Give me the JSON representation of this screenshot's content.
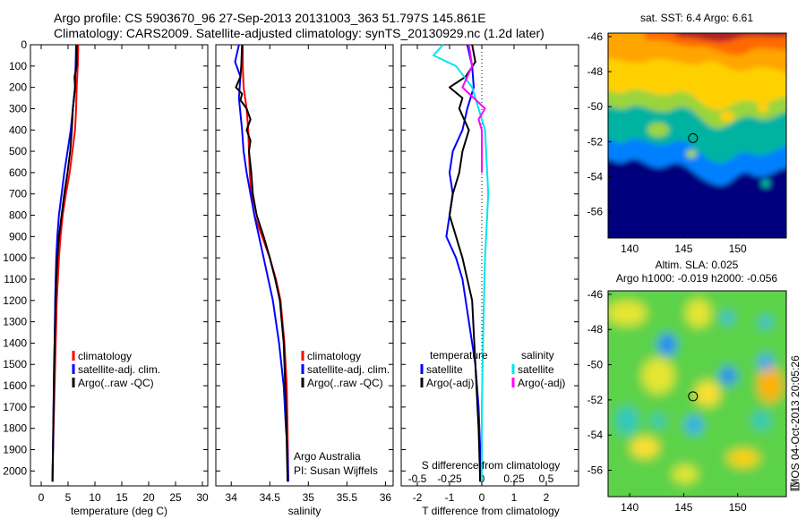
{
  "header": {
    "line1": "Argo profile: CS 5903670_96 27-Sep-2013 20131003_363 51.797S 145.861E",
    "line2": "Climatology: CARS2009. Satellite-adjusted climatology: synTS_20130929.nc (1.2d later)"
  },
  "side_text": "IMOS 04-Oct-2013 20:05:26",
  "colors": {
    "climatology": "#ff0000",
    "satellite": "#0000ff",
    "argo": "#000000",
    "cyan": "#00e5ee",
    "magenta": "#ff00ff"
  },
  "chart_data": [
    {
      "type": "line",
      "xlabel": "temperature (deg C)",
      "ylabel": "",
      "xlim": [
        -2,
        31
      ],
      "ylim": [
        2070,
        0
      ],
      "yreversed": true,
      "xticks": [
        0,
        5,
        10,
        15,
        20,
        25,
        30
      ],
      "yticks": [
        0,
        100,
        200,
        300,
        400,
        500,
        600,
        700,
        800,
        900,
        1000,
        1100,
        1200,
        1300,
        1400,
        1500,
        1600,
        1700,
        1800,
        1900,
        2000
      ],
      "legend": [
        "climatology",
        "satellite-adj. clim.",
        "Argo(..raw -QC)"
      ],
      "series": [
        {
          "name": "climatology",
          "color": "#ff0000",
          "x": [
            6.9,
            6.8,
            6.6,
            6.5,
            6.3,
            5.8,
            5.3,
            4.6,
            4.0,
            3.6,
            3.3,
            3.1,
            2.9,
            2.7,
            2.6,
            2.5,
            2.4,
            2.3,
            2.2,
            2.1
          ],
          "y": [
            0,
            100,
            200,
            300,
            400,
            500,
            600,
            700,
            800,
            900,
            1000,
            1100,
            1200,
            1400,
            1500,
            1600,
            1700,
            1800,
            1900,
            2050
          ]
        },
        {
          "name": "satellite-adj. clim.",
          "color": "#0000ff",
          "x": [
            6.5,
            6.4,
            6.3,
            5.9,
            5.5,
            4.9,
            4.3,
            3.8,
            3.3,
            3.0,
            2.8,
            2.6,
            2.5,
            2.3,
            2.1
          ],
          "y": [
            0,
            100,
            200,
            300,
            400,
            500,
            600,
            700,
            800,
            900,
            1000,
            1200,
            1400,
            1700,
            2050
          ]
        },
        {
          "name": "Argo(..raw -QC)",
          "color": "#000000",
          "x": [
            6.6,
            6.6,
            6.2,
            6.3,
            5.9,
            5.7,
            5.4,
            4.9,
            4.3,
            3.8,
            3.3,
            3.0,
            2.8,
            2.6,
            2.4,
            2.3,
            2.2,
            2.1
          ],
          "y": [
            0,
            100,
            150,
            200,
            300,
            400,
            500,
            600,
            700,
            800,
            900,
            1000,
            1100,
            1300,
            1500,
            1700,
            1900,
            2050
          ]
        }
      ]
    },
    {
      "type": "line",
      "xlabel": "salinity",
      "ylabel": "",
      "xlim": [
        33.8,
        36.1
      ],
      "ylim": [
        2070,
        0
      ],
      "yreversed": true,
      "xticks": [
        34,
        34.5,
        35,
        35.5,
        36
      ],
      "xticklabels": [
        "34",
        "34.5",
        "35",
        "35.5",
        "36"
      ],
      "legend": [
        "climatology",
        "satellite-adj. clim.",
        "Argo(..raw -QC)"
      ],
      "annotations": [
        "Argo Australia",
        "PI: Susan Wijffels"
      ],
      "series": [
        {
          "name": "climatology",
          "color": "#ff0000",
          "x": [
            34.15,
            34.15,
            34.16,
            34.2,
            34.22,
            34.23,
            34.24,
            34.26,
            34.3,
            34.4,
            34.5,
            34.58,
            34.64,
            34.69,
            34.72,
            34.73,
            34.74
          ],
          "y": [
            0,
            100,
            200,
            300,
            400,
            500,
            600,
            700,
            800,
            900,
            1000,
            1100,
            1200,
            1400,
            1600,
            1800,
            2050
          ]
        },
        {
          "name": "satellite-adj. clim.",
          "color": "#0000ff",
          "x": [
            34.1,
            34.05,
            34.12,
            34.1,
            34.14,
            34.16,
            34.2,
            34.3,
            34.42,
            34.54,
            34.62,
            34.68,
            34.71,
            34.73,
            34.74
          ],
          "y": [
            0,
            80,
            150,
            250,
            400,
            500,
            600,
            800,
            1000,
            1200,
            1400,
            1600,
            1800,
            1900,
            2050
          ]
        },
        {
          "name": "Argo(..raw -QC)",
          "color": "#000000",
          "x": [
            34.14,
            34.13,
            34.12,
            34.06,
            34.14,
            34.12,
            34.2,
            34.25,
            34.2,
            34.25,
            34.23,
            34.26,
            34.28,
            34.33,
            34.42,
            34.5,
            34.57,
            34.63,
            34.68,
            34.71,
            34.73
          ],
          "y": [
            0,
            100,
            150,
            200,
            230,
            260,
            300,
            350,
            400,
            450,
            500,
            600,
            700,
            800,
            900,
            1000,
            1100,
            1200,
            1400,
            1700,
            2050
          ]
        }
      ]
    },
    {
      "type": "line",
      "xlabel": "T difference from climatology",
      "xlabel2": "S difference from climatology",
      "xlim": [
        -2.5,
        3.0
      ],
      "ylim": [
        2070,
        0
      ],
      "yreversed": true,
      "xticks": [
        -2,
        -1,
        0,
        1,
        2
      ],
      "xticks2": [
        -0.5,
        -0.25,
        0,
        0.25,
        0.5
      ],
      "xticklabels2": [
        "-0.5",
        "-0.25",
        "0",
        "0.25",
        "0.5"
      ],
      "legend_titles": [
        "temperature",
        "salinity"
      ],
      "legend": [
        "satellite",
        "Argo(-adj)",
        "satellite",
        "Argo(-adj)"
      ],
      "series": [
        {
          "name": "temperature satellite",
          "color": "#0000ff",
          "x": [
            -0.45,
            -0.3,
            -0.25,
            -0.45,
            -0.6,
            -0.9,
            -1.0,
            -0.9,
            -1.0,
            -1.1,
            -0.8,
            -0.6,
            -0.4,
            -0.2,
            -0.1,
            -0.05,
            -0.05
          ],
          "y": [
            0,
            100,
            200,
            300,
            400,
            500,
            600,
            700,
            800,
            900,
            1000,
            1100,
            1300,
            1500,
            1700,
            1900,
            2050
          ]
        },
        {
          "name": "temperature Argo(-adj)",
          "color": "#000000",
          "x": [
            -0.3,
            -0.2,
            -0.5,
            -1.0,
            -0.6,
            -0.7,
            -0.4,
            -0.6,
            -0.7,
            -0.9,
            -1.0,
            -0.8,
            -0.6,
            -0.3,
            -0.2,
            -0.1,
            -0.05
          ],
          "y": [
            0,
            80,
            150,
            200,
            250,
            300,
            400,
            500,
            600,
            700,
            800,
            900,
            1000,
            1200,
            1500,
            1800,
            2050
          ]
        },
        {
          "name": "salinity satellite",
          "color": "#00e5ee",
          "x": [
            -1.2,
            -1.5,
            -0.8,
            -0.3,
            0.1,
            0.2,
            0.1,
            0.05,
            0.0,
            0.0
          ],
          "y": [
            0,
            50,
            100,
            200,
            400,
            700,
            1000,
            1300,
            1700,
            2050
          ]
        },
        {
          "name": "salinity Argo(-adj)",
          "color": "#ff00ff",
          "x": [
            -0.4,
            -0.3,
            -0.6,
            0.1,
            -0.1,
            0.0,
            0.0,
            0.0
          ],
          "y": [
            0,
            100,
            200,
            300,
            350,
            400,
            500,
            600
          ]
        }
      ]
    },
    {
      "type": "heatmap",
      "title": "sat. SST: 6.4 Argo: 6.61",
      "xticks": [
        140,
        145,
        150
      ],
      "yticks": [
        -46,
        -48,
        -50,
        -52,
        -54,
        -56
      ],
      "xlim": [
        138,
        154.5
      ],
      "ylim": [
        -57.5,
        -45.8
      ],
      "marker": {
        "lon": 145.861,
        "lat": -51.797
      }
    },
    {
      "type": "heatmap",
      "title": "Altim. SLA: 0.025",
      "subtitle": "Argo h1000: -0.019 h2000: -0.056",
      "xticks": [
        140,
        145,
        150
      ],
      "yticks": [
        -46,
        -48,
        -50,
        -52,
        -54,
        -56
      ],
      "xlim": [
        138,
        154.5
      ],
      "ylim": [
        -57.5,
        -45.8
      ],
      "marker": {
        "lon": 145.861,
        "lat": -51.797
      }
    }
  ]
}
